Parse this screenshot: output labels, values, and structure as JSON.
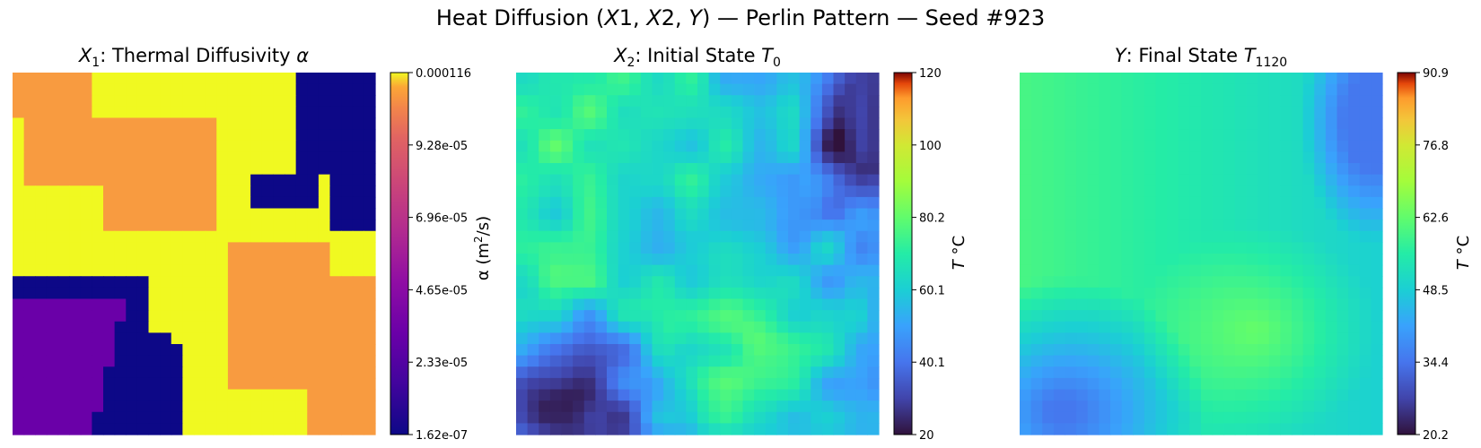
{
  "title": "Heat Diffusion (X1, X2, Y) — Perlin Pattern  — Seed #923",
  "chart_data": [
    {
      "type": "heatmap",
      "title": "X1: Thermal Diffusivity α",
      "colormap": "plasma",
      "colorbar_label": "α (m²/s)",
      "colorbar_range": [
        1.62e-07,
        0.000116
      ],
      "colorbar_ticks": [
        "1.62e-07",
        "2.33e-05",
        "4.65e-05",
        "6.96e-05",
        "9.28e-05",
        "0.000116"
      ],
      "grid_size": [
        32,
        32
      ],
      "regions": [
        {
          "label": "high",
          "value": 0.000116,
          "color": "#f0f921"
        },
        {
          "label": "mid-high",
          "value": 8.4e-05,
          "color": "#f89b40"
        },
        {
          "label": "mid-low",
          "value": 2.1e-05,
          "color": "#6a00a8"
        },
        {
          "label": "low",
          "value": 1.62e-07,
          "color": "#0d0887"
        }
      ]
    },
    {
      "type": "heatmap",
      "title": "X2: Initial State T0",
      "colormap": "turbo",
      "colorbar_label": "T °C",
      "colorbar_range": [
        20,
        120
      ],
      "colorbar_ticks": [
        "20",
        "40.1",
        "60.1",
        "80.2",
        "100",
        "120"
      ],
      "grid_size": [
        32,
        32
      ]
    },
    {
      "type": "heatmap",
      "title": "Y: Final State T1120",
      "colormap": "turbo",
      "colorbar_label": "T °C",
      "colorbar_range": [
        20.2,
        90.9
      ],
      "colorbar_ticks": [
        "20.2",
        "34.4",
        "48.5",
        "62.6",
        "76.8",
        "90.9"
      ],
      "grid_size": [
        32,
        32
      ]
    }
  ]
}
